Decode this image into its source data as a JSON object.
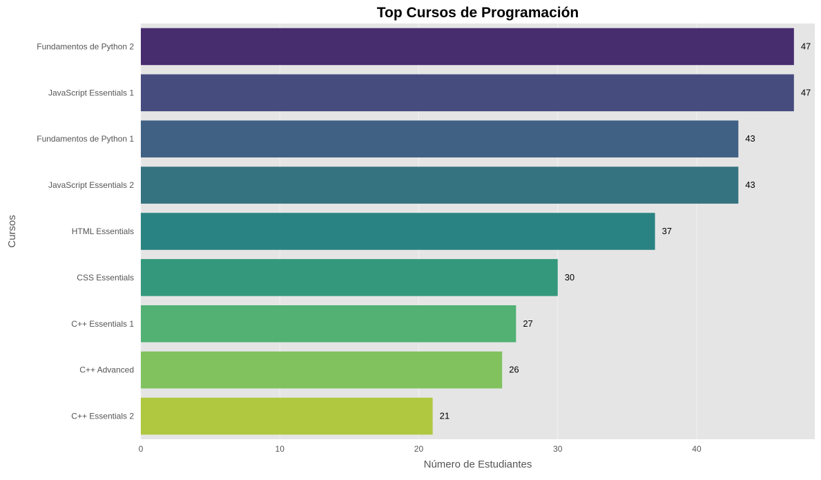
{
  "chart_data": {
    "type": "bar",
    "orientation": "horizontal",
    "title": "Top Cursos de Programación",
    "xlabel": "Número de Estudiantes",
    "ylabel": "Cursos",
    "xlim": [
      0,
      48.5
    ],
    "xticks": [
      0,
      10,
      20,
      30,
      40
    ],
    "grid": true,
    "background": "#e5e5e5",
    "grid_color": "#f0f0f0",
    "palette": "viridis",
    "categories": [
      "Fundamentos de Python 2",
      "JavaScript Essentials 1",
      "Fundamentos de Python 1",
      "JavaScript Essentials 2",
      "HTML Essentials",
      "CSS Essentials",
      "C++ Essentials 1",
      "C++ Advanced",
      "C++ Essentials 2"
    ],
    "values": [
      47,
      47,
      43,
      43,
      37,
      30,
      27,
      26,
      21
    ],
    "value_labels": [
      "47",
      "47",
      "43",
      "43",
      "37",
      "30",
      "27",
      "26",
      "21"
    ],
    "colors": [
      "#472c6e",
      "#474c7f",
      "#406184",
      "#357380",
      "#2a8383",
      "#33987c",
      "#52b173",
      "#81c25f",
      "#afc83f"
    ]
  }
}
